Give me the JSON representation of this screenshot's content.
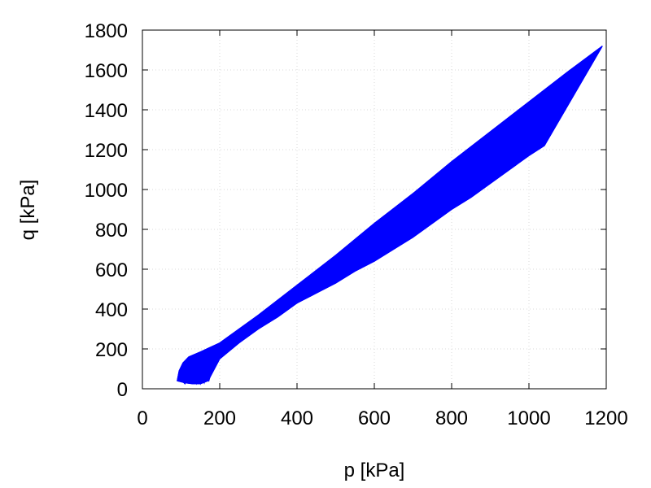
{
  "chart_data": {
    "type": "line",
    "xlabel": "p [kPa]",
    "ylabel": "q [kPa]",
    "xlim": [
      0,
      1200
    ],
    "ylim": [
      0,
      1800
    ],
    "xticks": [
      0,
      200,
      400,
      600,
      800,
      1000,
      1200
    ],
    "yticks": [
      0,
      200,
      400,
      600,
      800,
      1000,
      1200,
      1400,
      1600,
      1800
    ],
    "xtick_labels": [
      "0",
      "200",
      "400",
      "600",
      "800",
      "1000",
      "1200"
    ],
    "ytick_labels": [
      "0",
      "200",
      "400",
      "600",
      "800",
      "1000",
      "1200",
      "1400",
      "1600",
      "1800"
    ],
    "grid": true,
    "legend": "none",
    "series_color": "#0000ff",
    "upper_envelope": {
      "x": [
        90,
        95,
        105,
        120,
        150,
        200,
        300,
        400,
        500,
        600,
        700,
        800,
        900,
        1000,
        1100,
        1190
      ],
      "y": [
        40,
        90,
        130,
        160,
        185,
        230,
        370,
        520,
        670,
        830,
        980,
        1140,
        1290,
        1440,
        1590,
        1720
      ]
    },
    "lower_envelope": {
      "x": [
        90,
        110,
        130,
        150,
        170,
        200,
        250,
        300,
        350,
        400,
        450,
        500,
        550,
        600,
        650,
        700,
        750,
        800,
        850,
        900,
        950,
        1000,
        1040,
        1100,
        1190
      ],
      "y": [
        40,
        30,
        25,
        25,
        40,
        150,
        230,
        300,
        360,
        430,
        480,
        530,
        590,
        640,
        700,
        760,
        830,
        900,
        960,
        1030,
        1100,
        1170,
        1220,
        1420,
        1720
      ]
    },
    "start_spikes": [
      {
        "x": [
          105,
          110,
          120
        ],
        "y": [
          35,
          25,
          70
        ]
      },
      {
        "x": [
          115,
          120,
          130
        ],
        "y": [
          40,
          30,
          85
        ]
      },
      {
        "x": [
          125,
          130,
          142
        ],
        "y": [
          45,
          28,
          100
        ]
      },
      {
        "x": [
          135,
          140,
          152
        ],
        "y": [
          50,
          26,
          115
        ]
      },
      {
        "x": [
          145,
          150,
          163
        ],
        "y": [
          55,
          26,
          130
        ]
      },
      {
        "x": [
          155,
          160,
          176
        ],
        "y": [
          60,
          30,
          145
        ]
      },
      {
        "x": [
          165,
          172,
          190
        ],
        "y": [
          65,
          40,
          160
        ]
      }
    ]
  }
}
